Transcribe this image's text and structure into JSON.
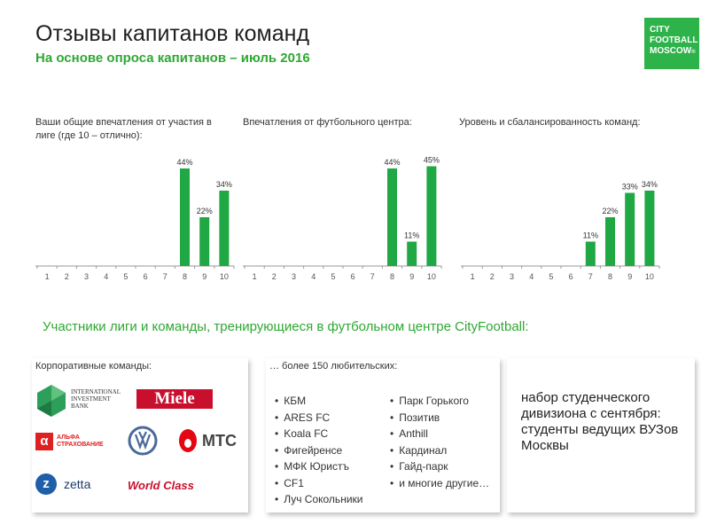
{
  "header": {
    "title": "Отзывы капитанов команд",
    "subtitle": "На основе опроса капитанов – июль 2016",
    "logo_lines": [
      "CITY",
      "FOOTBALL",
      "MOSCOW"
    ],
    "logo_mark": "®"
  },
  "chart_data": [
    {
      "type": "bar",
      "title": "Ваши общие впечатления от участия в лиге (где 10 – отлично):",
      "categories": [
        "1",
        "2",
        "3",
        "4",
        "5",
        "6",
        "7",
        "8",
        "9",
        "10"
      ],
      "values": [
        0,
        0,
        0,
        0,
        0,
        0,
        0,
        44,
        22,
        34
      ],
      "labels": [
        "",
        "",
        "",
        "",
        "",
        "",
        "",
        "44%",
        "22%",
        "34%"
      ],
      "ylim": [
        0,
        50
      ],
      "grid": false,
      "color": "#1fa844"
    },
    {
      "type": "bar",
      "title": "Впечатления от футбольного центра:",
      "categories": [
        "1",
        "2",
        "3",
        "4",
        "5",
        "6",
        "7",
        "8",
        "9",
        "10"
      ],
      "values": [
        0,
        0,
        0,
        0,
        0,
        0,
        0,
        44,
        11,
        45
      ],
      "labels": [
        "",
        "",
        "",
        "",
        "",
        "",
        "",
        "44%",
        "11%",
        "45%"
      ],
      "ylim": [
        0,
        50
      ],
      "grid": false,
      "color": "#1fa844"
    },
    {
      "type": "bar",
      "title": "Уровень и сбалансированность команд:",
      "categories": [
        "1",
        "2",
        "3",
        "4",
        "5",
        "6",
        "7",
        "8",
        "9",
        "10"
      ],
      "values": [
        0,
        0,
        0,
        0,
        0,
        0,
        11,
        22,
        33,
        34
      ],
      "labels": [
        "",
        "",
        "",
        "",
        "",
        "",
        "11%",
        "22%",
        "33%",
        "34%"
      ],
      "ylim": [
        0,
        50
      ],
      "grid": false,
      "color": "#1fa844"
    }
  ],
  "league_heading": "Участники лиги и команды, тренирующиеся в футбольном центре CityFootball:",
  "corporate": {
    "title": "Корпоративные команды:",
    "logos": {
      "iib": [
        "INTERNATIONAL",
        "INVESTMENT",
        "BANK"
      ],
      "miele": "Miele",
      "alfa": [
        "АЛЬФА",
        "СТРАХОВАНИЕ"
      ],
      "mts": "МТС",
      "zetta": "zetta",
      "worldclass": "World Class"
    }
  },
  "amateur": {
    "title": "… более 150 любительских:",
    "col1": [
      "КБМ",
      "ARES FC",
      "Koala FC",
      "Фигейренсе",
      "МФК Юристъ",
      "CF1",
      "Луч Сокольники"
    ],
    "col2": [
      "Парк Горького",
      "Позитив",
      "Anthill",
      "Кардинал",
      "Гайд-парк",
      "и многие другие…"
    ]
  },
  "students": {
    "text": "набор студенческого дивизиона с сентября: студенты ведущих ВУЗов Москвы"
  }
}
